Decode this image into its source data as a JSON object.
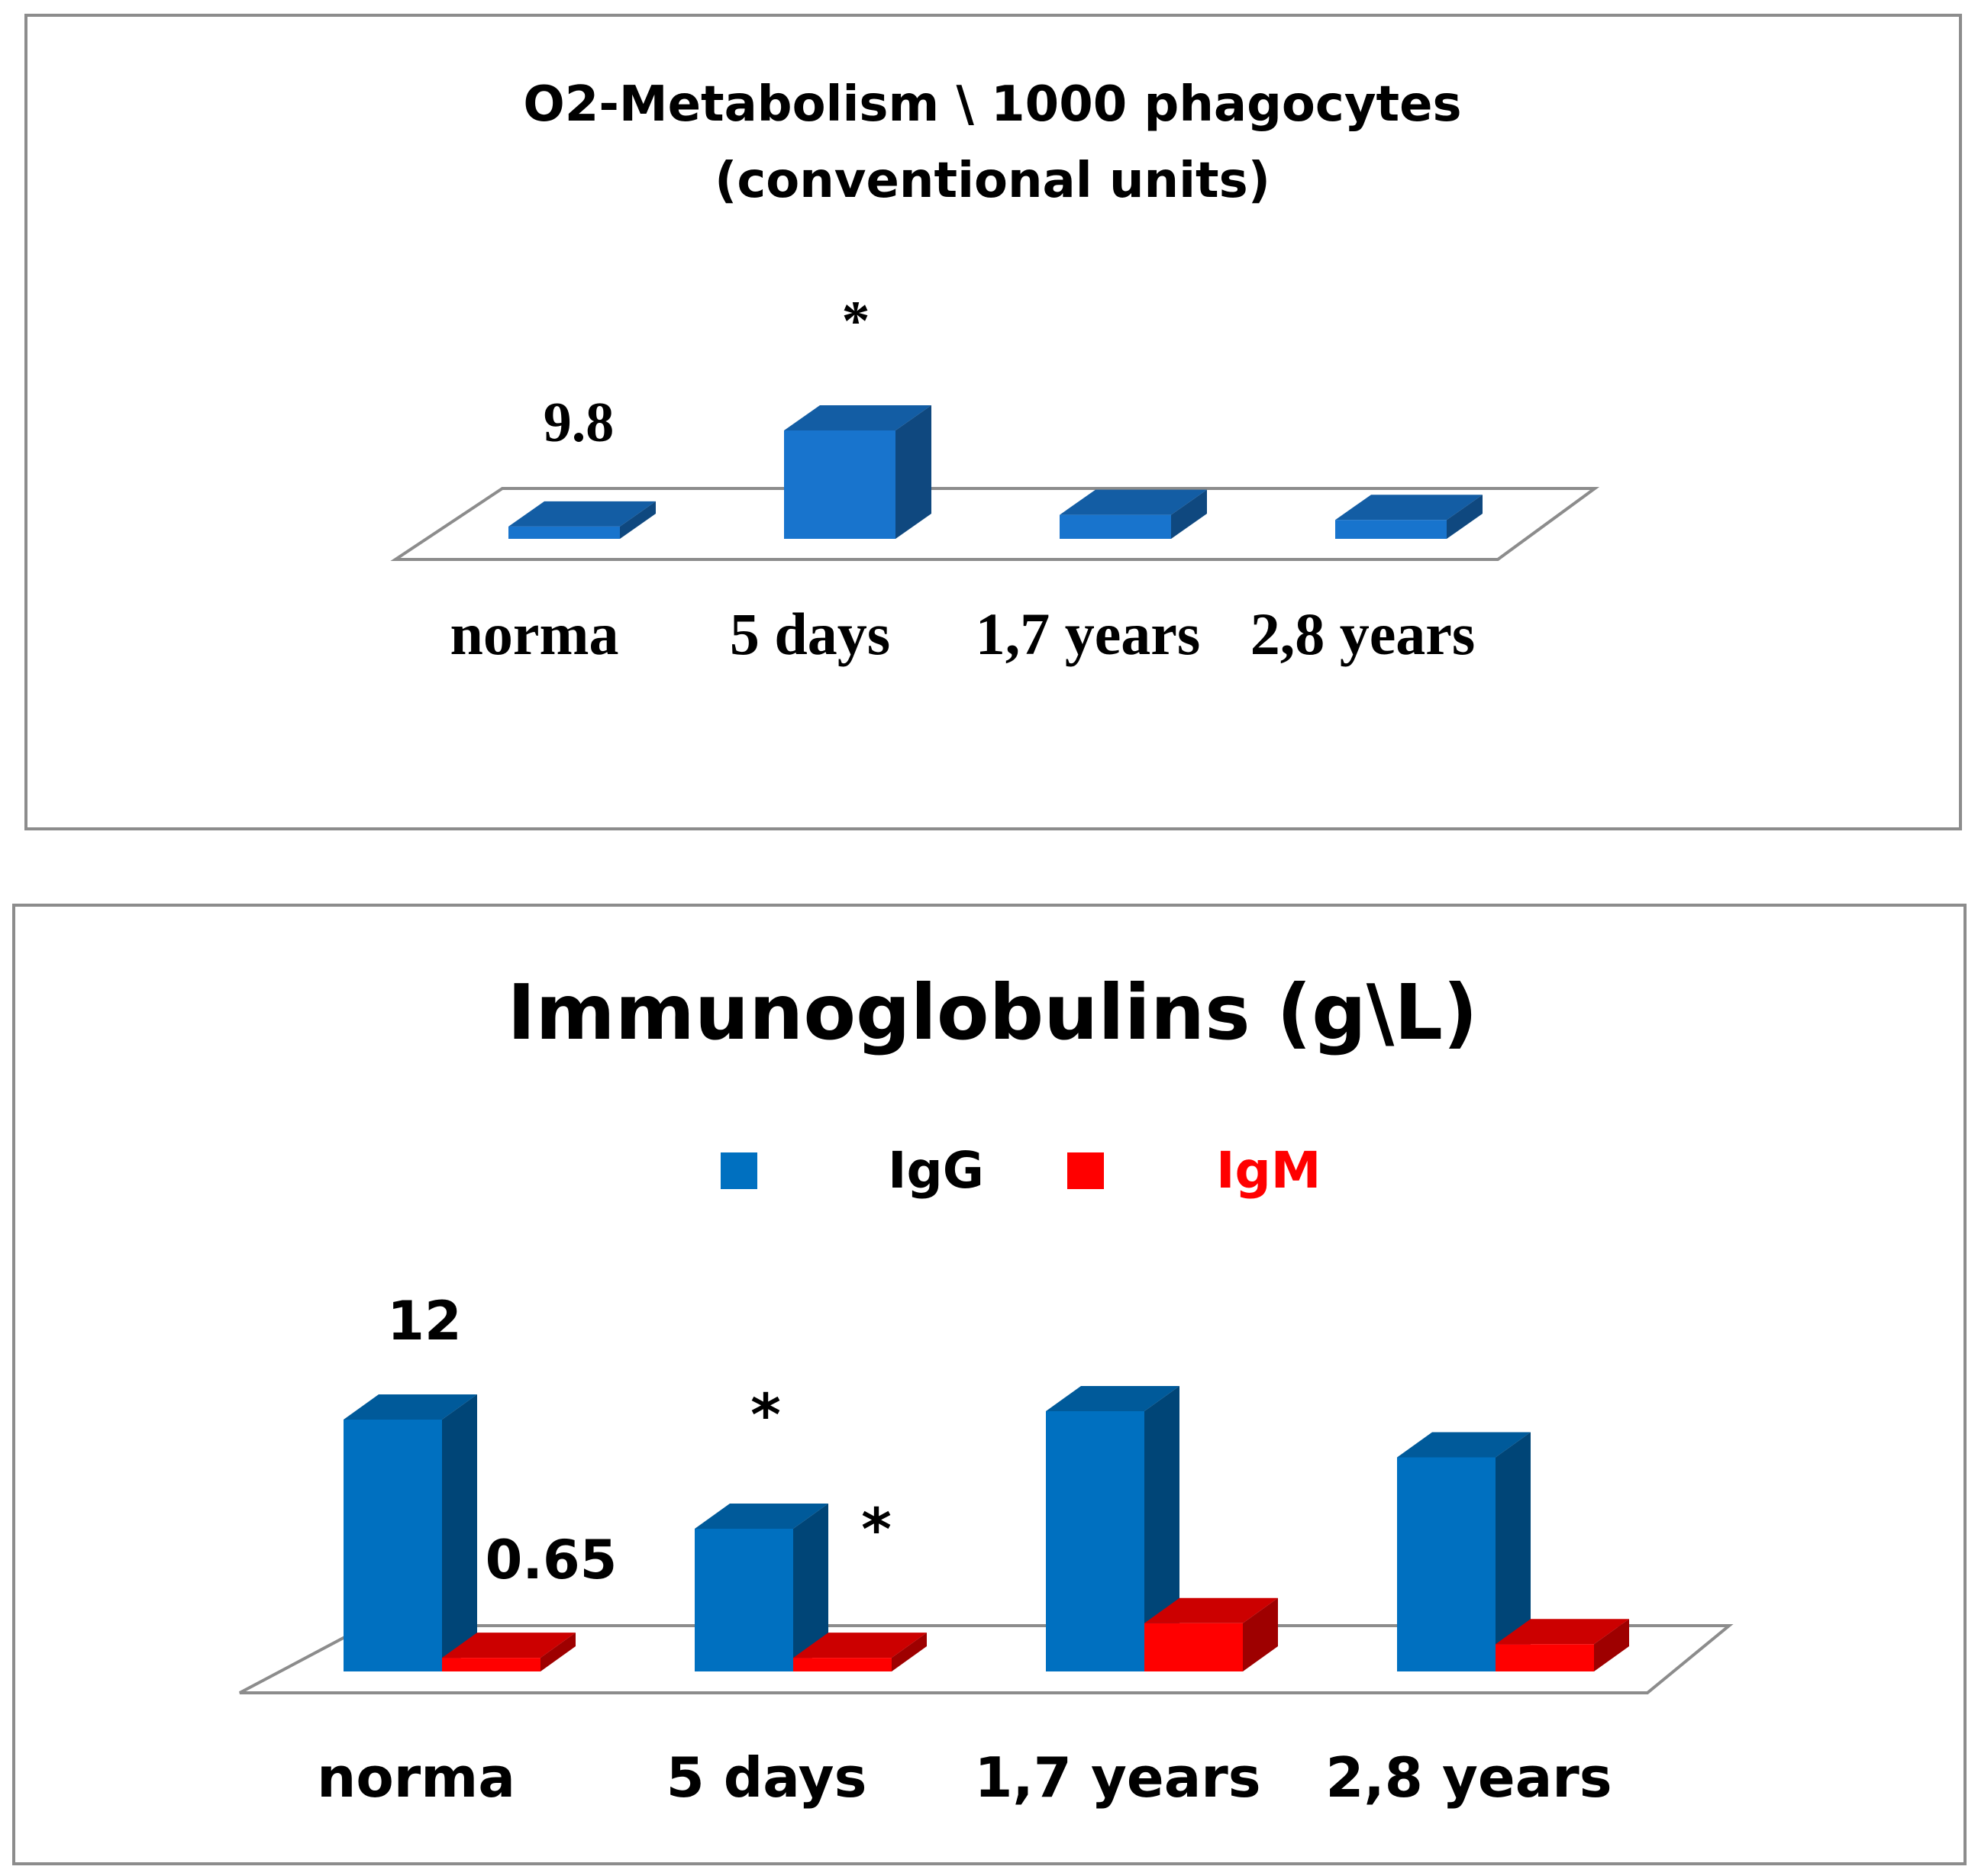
{
  "chart_data": [
    {
      "type": "bar",
      "title_lines": [
        "O2-Metabolism \\ 1000 phagocytes",
        "(conventional units)"
      ],
      "categories": [
        "norma",
        "5 days",
        "1,7 years",
        "2,8 years"
      ],
      "series": [
        {
          "values": [
            9.8,
            86,
            19,
            15
          ],
          "color": "#1874cd"
        }
      ],
      "data_labels": [
        {
          "category": "norma",
          "text": "9.8"
        }
      ],
      "significance": [
        {
          "category": "5 days",
          "text": "*"
        }
      ],
      "ylim": [
        0,
        90
      ],
      "legend": "none",
      "grid": false
    },
    {
      "type": "bar",
      "title": "Immunoglobulins (g\\L)",
      "categories": [
        "norma",
        "5 days",
        "1,7 years",
        "2,8 years"
      ],
      "series": [
        {
          "name": "IgG",
          "values": [
            12,
            6.8,
            12.4,
            10.2
          ],
          "color": "#0070c0"
        },
        {
          "name": "IgM",
          "values": [
            0.65,
            0.65,
            2.3,
            1.3
          ],
          "color": "#ff0000"
        }
      ],
      "data_labels": [
        {
          "category": "norma",
          "series": "IgG",
          "text": "12"
        },
        {
          "category": "norma",
          "series": "IgM",
          "text": "0.65"
        }
      ],
      "significance": [
        {
          "category": "5 days",
          "series": "IgG",
          "text": "*"
        },
        {
          "category": "5 days",
          "series": "IgM",
          "text": "*"
        }
      ],
      "ylim": [
        0,
        14
      ],
      "legend": "top-center",
      "grid": false
    }
  ]
}
